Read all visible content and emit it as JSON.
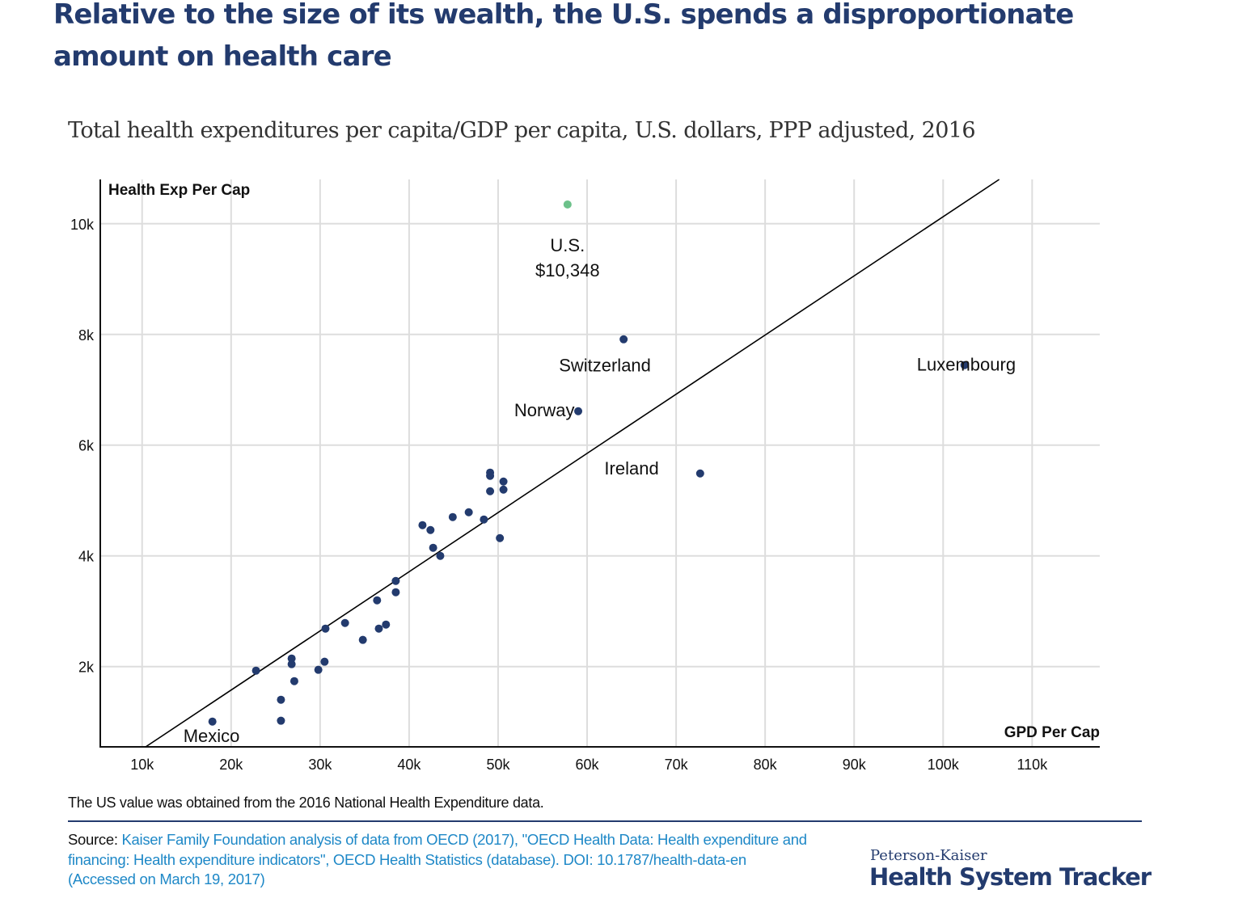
{
  "header": {
    "title": "Relative to the size of its wealth, the U.S. spends a disproportionate amount on health care",
    "subtitle": "Total health expenditures per capita/GDP per capita, U.S. dollars, PPP adjusted, 2016"
  },
  "chart_data": {
    "type": "scatter",
    "title": "Total health expenditures per capita/GDP per capita, U.S. dollars, PPP adjusted, 2016",
    "xlabel": "GPD Per Cap",
    "ylabel": "Health Exp Per Cap",
    "xlim": [
      5300,
      117600
    ],
    "ylim": [
      550,
      10800
    ],
    "grid": true,
    "x_ticks": [
      10000,
      20000,
      30000,
      40000,
      50000,
      60000,
      70000,
      80000,
      90000,
      100000,
      110000
    ],
    "x_tick_labels": [
      "10k",
      "20k",
      "30k",
      "40k",
      "50k",
      "60k",
      "70k",
      "80k",
      "90k",
      "100k",
      "110k"
    ],
    "y_ticks": [
      2000,
      4000,
      6000,
      8000,
      10000
    ],
    "y_tick_labels": [
      "2k",
      "4k",
      "6k",
      "8k",
      "10k"
    ],
    "colors": {
      "default": "#233b6e",
      "highlight": "#6cc18a",
      "trend": "#000000",
      "grid": "#dddddd"
    },
    "trend_line": {
      "x": [
        10400,
        106300
      ],
      "y": [
        550,
        10800
      ]
    },
    "points": [
      {
        "label": "U.S.",
        "x": 57800,
        "y": 10348,
        "highlight": true
      },
      {
        "label": "Switzerland",
        "x": 64100,
        "y": 7912
      },
      {
        "label": "Norway",
        "x": 59000,
        "y": 6613
      },
      {
        "label": "Luxembourg",
        "x": 102400,
        "y": 7445
      },
      {
        "label": "Ireland",
        "x": 72700,
        "y": 5489
      },
      {
        "label": "Mexico",
        "x": 17900,
        "y": 1007
      },
      {
        "label": "",
        "x": 22800,
        "y": 1927
      },
      {
        "label": "",
        "x": 25600,
        "y": 1401
      },
      {
        "label": "",
        "x": 25600,
        "y": 1022
      },
      {
        "label": "",
        "x": 26800,
        "y": 2146
      },
      {
        "label": "",
        "x": 26800,
        "y": 2044
      },
      {
        "label": "",
        "x": 27100,
        "y": 1737
      },
      {
        "label": "",
        "x": 29800,
        "y": 1942
      },
      {
        "label": "",
        "x": 30500,
        "y": 2088
      },
      {
        "label": "",
        "x": 30600,
        "y": 2686
      },
      {
        "label": "",
        "x": 32800,
        "y": 2788
      },
      {
        "label": "",
        "x": 34800,
        "y": 2482
      },
      {
        "label": "",
        "x": 36400,
        "y": 3197
      },
      {
        "label": "",
        "x": 36600,
        "y": 2686
      },
      {
        "label": "",
        "x": 37400,
        "y": 2759
      },
      {
        "label": "",
        "x": 38500,
        "y": 3547
      },
      {
        "label": "",
        "x": 38500,
        "y": 3343
      },
      {
        "label": "",
        "x": 41500,
        "y": 4555
      },
      {
        "label": "",
        "x": 42400,
        "y": 4467
      },
      {
        "label": "",
        "x": 42700,
        "y": 4146
      },
      {
        "label": "",
        "x": 43500,
        "y": 4000
      },
      {
        "label": "",
        "x": 44900,
        "y": 4701
      },
      {
        "label": "",
        "x": 46700,
        "y": 4788
      },
      {
        "label": "",
        "x": 48400,
        "y": 4657
      },
      {
        "label": "",
        "x": 49100,
        "y": 5504
      },
      {
        "label": "",
        "x": 49100,
        "y": 5445
      },
      {
        "label": "",
        "x": 49100,
        "y": 5168
      },
      {
        "label": "",
        "x": 50600,
        "y": 5343
      },
      {
        "label": "",
        "x": 50600,
        "y": 5197
      },
      {
        "label": "",
        "x": 50200,
        "y": 4321
      }
    ],
    "annotations": [
      {
        "text": "U.S.",
        "x": 57800,
        "y": 9500
      },
      {
        "text": "$10,348",
        "x": 57800,
        "y": 9050
      },
      {
        "text": "Switzerland",
        "x": 62000,
        "y": 7330
      },
      {
        "text": "Norway",
        "x": 55200,
        "y": 6520
      },
      {
        "text": "Luxembourg",
        "x": 102600,
        "y": 7350
      },
      {
        "text": "Ireland",
        "x": 65000,
        "y": 5470,
        "anchor": "middle-offset"
      },
      {
        "text": "Mexico",
        "x": 17800,
        "y": 640
      }
    ]
  },
  "footer": {
    "note": "The US value was obtained from the 2016 National Health Expenditure data.",
    "source_label": "Source:",
    "source_text": "Kaiser Family Foundation analysis of data from OECD (2017), \"OECD Health Data: Health expenditure and financing: Health expenditure indicators\", OECD Health Statistics (database). DOI: 10.1787/health-data-en (Accessed on March 19, 2017)",
    "logo_top": "Peterson-Kaiser",
    "logo_bottom": "Health System Tracker"
  }
}
